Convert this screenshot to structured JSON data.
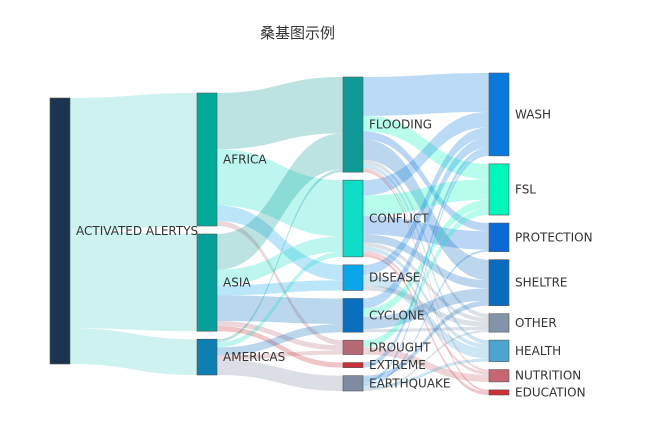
{
  "chart_data": {
    "type": "sankey",
    "title": "桑基图示例",
    "nodes": [
      {
        "name": "ACTIVATED ALERTYS",
        "color": "#1b344f"
      },
      {
        "name": "AFRICA",
        "color": "#04ab9b"
      },
      {
        "name": "ASIA",
        "color": "#079f9a"
      },
      {
        "name": "AMERICAS",
        "color": "#0f7fb2"
      },
      {
        "name": "FLOODING",
        "color": "#0f9a97"
      },
      {
        "name": "CONFLICT",
        "color": "#0fddc7"
      },
      {
        "name": "DISEASE",
        "color": "#0aa6ea"
      },
      {
        "name": "CYCLONE",
        "color": "#0a6fbf"
      },
      {
        "name": "DROUGHT",
        "color": "#b66a76"
      },
      {
        "name": "EXTREME",
        "color": "#c93036"
      },
      {
        "name": "EARTHQUAKE",
        "color": "#7f8aa3"
      },
      {
        "name": "WASH",
        "color": "#0a79de"
      },
      {
        "name": "FSL",
        "color": "#00f6ba"
      },
      {
        "name": "PROTECTION",
        "color": "#0a6ad8"
      },
      {
        "name": "SHELTRE",
        "color": "#0b6cbf"
      },
      {
        "name": "OTHER",
        "color": "#8393aa"
      },
      {
        "name": "HEALTH",
        "color": "#4aa5d3"
      },
      {
        "name": "NUTRITION",
        "color": "#c66672"
      },
      {
        "name": "EDUCATION",
        "color": "#cf2f35"
      }
    ],
    "links": [
      {
        "source": "ACTIVATED ALERTYS",
        "target": "AFRICA",
        "value": 130
      },
      {
        "source": "ACTIVATED ALERTYS",
        "target": "ASIA",
        "value": 95
      },
      {
        "source": "ACTIVATED ALERTYS",
        "target": "AMERICAS",
        "value": 35
      },
      {
        "source": "AFRICA",
        "target": "FLOODING",
        "value": 55
      },
      {
        "source": "AFRICA",
        "target": "CONFLICT",
        "value": 55
      },
      {
        "source": "AFRICA",
        "target": "DISEASE",
        "value": 15
      },
      {
        "source": "AFRICA",
        "target": "DROUGHT",
        "value": 5
      },
      {
        "source": "ASIA",
        "target": "FLOODING",
        "value": 35
      },
      {
        "source": "ASIA",
        "target": "CONFLICT",
        "value": 15
      },
      {
        "source": "ASIA",
        "target": "DISEASE",
        "value": 10
      },
      {
        "source": "ASIA",
        "target": "CYCLONE",
        "value": 25
      },
      {
        "source": "ASIA",
        "target": "DROUGHT",
        "value": 5
      },
      {
        "source": "ASIA",
        "target": "EXTREME",
        "value": 5
      },
      {
        "source": "AMERICAS",
        "target": "FLOODING",
        "value": 3
      },
      {
        "source": "AMERICAS",
        "target": "CONFLICT",
        "value": 5
      },
      {
        "source": "AMERICAS",
        "target": "CYCLONE",
        "value": 8
      },
      {
        "source": "AMERICAS",
        "target": "DROUGHT",
        "value": 4
      },
      {
        "source": "AMERICAS",
        "target": "EARTHQUAKE",
        "value": 15
      },
      {
        "source": "FLOODING",
        "target": "WASH",
        "value": 38
      },
      {
        "source": "FLOODING",
        "target": "FSL",
        "value": 15
      },
      {
        "source": "FLOODING",
        "target": "PROTECTION",
        "value": 8
      },
      {
        "source": "FLOODING",
        "target": "SHELTRE",
        "value": 20
      },
      {
        "source": "FLOODING",
        "target": "OTHER",
        "value": 4
      },
      {
        "source": "FLOODING",
        "target": "HEALTH",
        "value": 4
      },
      {
        "source": "FLOODING",
        "target": "NUTRITION",
        "value": 2
      },
      {
        "source": "FLOODING",
        "target": "EDUCATION",
        "value": 2
      },
      {
        "source": "CONFLICT",
        "target": "WASH",
        "value": 15
      },
      {
        "source": "CONFLICT",
        "target": "FSL",
        "value": 20
      },
      {
        "source": "CONFLICT",
        "target": "PROTECTION",
        "value": 18
      },
      {
        "source": "CONFLICT",
        "target": "SHELTRE",
        "value": 8
      },
      {
        "source": "CONFLICT",
        "target": "OTHER",
        "value": 4
      },
      {
        "source": "CONFLICT",
        "target": "HEALTH",
        "value": 4
      },
      {
        "source": "CONFLICT",
        "target": "NUTRITION",
        "value": 3
      },
      {
        "source": "CONFLICT",
        "target": "EDUCATION",
        "value": 3
      },
      {
        "source": "DISEASE",
        "target": "WASH",
        "value": 10
      },
      {
        "source": "DISEASE",
        "target": "HEALTH",
        "value": 10
      },
      {
        "source": "DISEASE",
        "target": "OTHER",
        "value": 5
      },
      {
        "source": "CYCLONE",
        "target": "WASH",
        "value": 10
      },
      {
        "source": "CYCLONE",
        "target": "FSL",
        "value": 8
      },
      {
        "source": "CYCLONE",
        "target": "SHELTRE",
        "value": 12
      },
      {
        "source": "CYCLONE",
        "target": "OTHER",
        "value": 3
      },
      {
        "source": "DROUGHT",
        "target": "FSL",
        "value": 7
      },
      {
        "source": "DROUGHT",
        "target": "NUTRITION",
        "value": 7
      },
      {
        "source": "EXTREME",
        "target": "WASH",
        "value": 5
      },
      {
        "source": "EARTHQUAKE",
        "target": "SHELTRE",
        "value": 5
      },
      {
        "source": "EARTHQUAKE",
        "target": "WASH",
        "value": 3
      },
      {
        "source": "EARTHQUAKE",
        "target": "PROTECTION",
        "value": 2
      },
      {
        "source": "EARTHQUAKE",
        "target": "HEALTH",
        "value": 3
      },
      {
        "source": "EARTHQUAKE",
        "target": "OTHER",
        "value": 2
      }
    ]
  }
}
